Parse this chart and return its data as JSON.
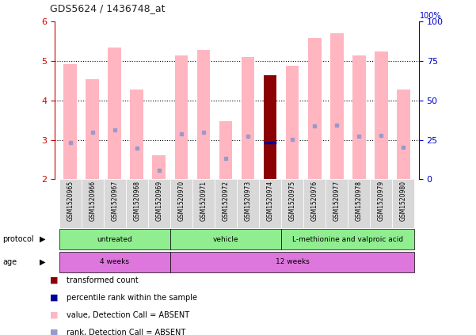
{
  "title": "GDS5624 / 1436748_at",
  "samples": [
    "GSM1520965",
    "GSM1520966",
    "GSM1520967",
    "GSM1520968",
    "GSM1520969",
    "GSM1520970",
    "GSM1520971",
    "GSM1520972",
    "GSM1520973",
    "GSM1520974",
    "GSM1520975",
    "GSM1520976",
    "GSM1520977",
    "GSM1520978",
    "GSM1520979",
    "GSM1520980"
  ],
  "pink_bar_values": [
    4.93,
    4.55,
    5.35,
    4.28,
    2.6,
    5.15,
    5.28,
    3.48,
    5.1,
    4.65,
    4.88,
    5.58,
    5.7,
    5.15,
    5.25,
    4.28
  ],
  "blue_dot_values": [
    2.93,
    3.2,
    3.25,
    2.8,
    2.22,
    3.15,
    3.2,
    2.52,
    3.1,
    2.93,
    3.02,
    3.35,
    3.38,
    3.1,
    3.12,
    2.82
  ],
  "red_bar_index": 9,
  "red_bar_value": 4.65,
  "blue_bar_value": 2.93,
  "ylim_left": [
    2,
    6
  ],
  "ylim_right": [
    0,
    100
  ],
  "yticks_left": [
    2,
    3,
    4,
    5,
    6
  ],
  "yticks_right": [
    0,
    25,
    50,
    75,
    100
  ],
  "pink_bar_color": "#FFB6C1",
  "red_bar_color": "#8B0000",
  "blue_dot_color": "#9999CC",
  "blue_bar_color": "#000099",
  "left_axis_color": "#CC0000",
  "right_axis_color": "#0000CC",
  "bg_color": "#FFFFFF",
  "plot_bg_color": "#FFFFFF",
  "cell_bg": "#D8D8D8",
  "protocol_color": "#90EE90",
  "age_color": "#DD77DD",
  "legend_items": [
    {
      "color": "#8B0000",
      "label": "transformed count"
    },
    {
      "color": "#000099",
      "label": "percentile rank within the sample"
    },
    {
      "color": "#FFB6C1",
      "label": "value, Detection Call = ABSENT"
    },
    {
      "color": "#9999CC",
      "label": "rank, Detection Call = ABSENT"
    }
  ]
}
